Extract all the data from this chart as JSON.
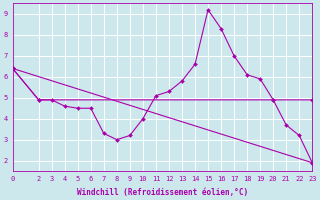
{
  "background_color": "#cce8ec",
  "grid_color": "#ffffff",
  "line_color": "#aa00aa",
  "xlabel": "Windchill (Refroidissement éolien,°C)",
  "xlim": [
    0,
    23
  ],
  "ylim": [
    1.5,
    9.5
  ],
  "yticks": [
    2,
    3,
    4,
    5,
    6,
    7,
    8,
    9
  ],
  "xticks": [
    0,
    2,
    3,
    4,
    5,
    6,
    7,
    8,
    9,
    10,
    11,
    12,
    13,
    14,
    15,
    16,
    17,
    18,
    19,
    20,
    21,
    22,
    23
  ],
  "xtick_labels": [
    "0",
    "2",
    "3",
    "4",
    "5",
    "6",
    "7",
    "8",
    "9",
    "10",
    "11",
    "12",
    "13",
    "14",
    "15",
    "16",
    "17",
    "18",
    "19",
    "20",
    "21",
    "22",
    "23"
  ],
  "series1_x": [
    0,
    2,
    3,
    4,
    5,
    6,
    7,
    8,
    9,
    10,
    11,
    12,
    13,
    14,
    15,
    16,
    17,
    18,
    19,
    20,
    21,
    22,
    23
  ],
  "series1_y": [
    6.4,
    4.9,
    4.9,
    4.6,
    4.5,
    4.5,
    3.3,
    3.0,
    3.2,
    4.0,
    5.1,
    5.3,
    5.8,
    6.6,
    9.2,
    8.3,
    7.0,
    6.1,
    5.9,
    4.9,
    3.7,
    3.2,
    1.9
  ],
  "series2_x": [
    0,
    23
  ],
  "series2_y": [
    6.4,
    1.9
  ],
  "series3_x": [
    0,
    2,
    20,
    23
  ],
  "series3_y": [
    6.4,
    4.9,
    4.9,
    4.9
  ],
  "axis_fontsize": 5.5,
  "tick_fontsize": 5.0
}
